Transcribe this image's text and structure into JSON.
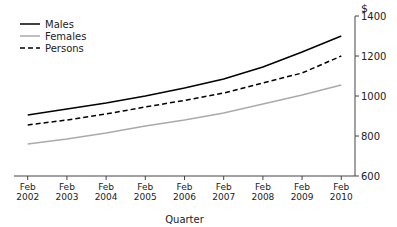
{
  "chart_data": {
    "type": "line",
    "categories": [
      "Feb\n2002",
      "Feb\n2003",
      "Feb\n2004",
      "Feb\n2005",
      "Feb\n2006",
      "Feb\n2007",
      "Feb\n2008",
      "Feb\n2009",
      "Feb\n2010"
    ],
    "series": [
      {
        "name": "Males",
        "color": "#000000",
        "line_style": "solid",
        "values": [
          905,
          935,
          965,
          1000,
          1040,
          1085,
          1145,
          1220,
          1300
        ]
      },
      {
        "name": "Females",
        "color": "#aaaaaa",
        "line_style": "solid",
        "values": [
          760,
          785,
          815,
          850,
          880,
          915,
          960,
          1005,
          1055
        ]
      },
      {
        "name": "Persons",
        "color": "#000000",
        "line_style": "dashed",
        "values": [
          855,
          880,
          910,
          945,
          978,
          1015,
          1065,
          1115,
          1200
        ]
      }
    ],
    "ylim": [
      600,
      1400
    ],
    "yticks": [
      600,
      800,
      1000,
      1200,
      1400
    ],
    "ylabel": "$",
    "xlabel": "Quarter",
    "legend": "upper left",
    "grid": false
  }
}
